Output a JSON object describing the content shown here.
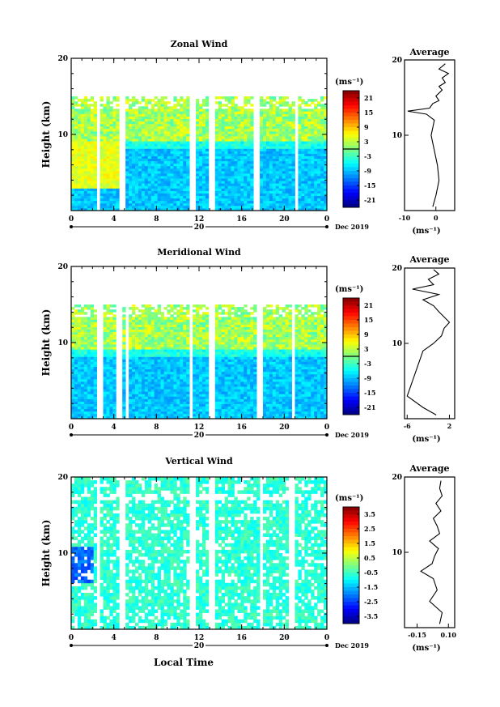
{
  "chart_data": [
    {
      "type": "heatmap",
      "title": "Zonal Wind",
      "ylabel": "Height (km)",
      "xlim": [
        0,
        24
      ],
      "ylim": [
        0,
        20
      ],
      "x_ticks": [
        "0",
        "4",
        "8",
        "12",
        "16",
        "20",
        "0"
      ],
      "y_ticks": [
        "20",
        "10"
      ],
      "date_marker": "20",
      "date_label": "Dec 2019",
      "colorbar": {
        "unit": "(ms⁻¹)",
        "ticks": [
          "21",
          "15",
          "9",
          "3",
          "-3",
          "-9",
          "-15",
          "-21"
        ],
        "range": [
          -24,
          24
        ]
      },
      "data_top_km": 15,
      "gaps_hours": [
        [
          2.3,
          2.7
        ],
        [
          4.6,
          5.1
        ],
        [
          5.6,
          5.7
        ],
        [
          11.2,
          11.6
        ],
        [
          13.0,
          13.5
        ],
        [
          17.2,
          17.6
        ],
        [
          21.0,
          21.3
        ]
      ],
      "profile": {
        "title": "Average",
        "xlim": [
          -10,
          6
        ],
        "ylim": [
          0,
          20
        ],
        "x_ticks": [
          "-10",
          "0"
        ],
        "y_ticks": [
          "20",
          "10"
        ],
        "xlabel": "(ms⁻¹)",
        "y": [
          0.5,
          2,
          4,
          6,
          8,
          10,
          11,
          12,
          12.8,
          13.2,
          13.6,
          14.2,
          14.6,
          15.2,
          16,
          16.5,
          17,
          17.6,
          18.2,
          18.8,
          19.5
        ],
        "x": [
          -1,
          0,
          1,
          0.5,
          -0.5,
          -1.5,
          -1,
          -0.5,
          -3,
          -9,
          -2,
          -1,
          1,
          0,
          2,
          1,
          3,
          2,
          4,
          1,
          3
        ]
      }
    },
    {
      "type": "heatmap",
      "title": "Meridional Wind",
      "ylabel": "Height (km)",
      "xlim": [
        0,
        24
      ],
      "ylim": [
        0,
        20
      ],
      "x_ticks": [
        "0",
        "4",
        "8",
        "12",
        "16",
        "20",
        "0"
      ],
      "y_ticks": [
        "20",
        "10"
      ],
      "date_marker": "20",
      "date_label": "Dec 2019",
      "colorbar": {
        "unit": "(ms⁻¹)",
        "ticks": [
          "21",
          "15",
          "9",
          "3",
          "-3",
          "-9",
          "-15",
          "-21"
        ],
        "range": [
          -24,
          24
        ]
      },
      "data_top_km": 15,
      "gaps_hours": [
        [
          2.5,
          2.9
        ],
        [
          4.1,
          4.7
        ],
        [
          5.0,
          5.3
        ],
        [
          11.0,
          11.5
        ],
        [
          13.0,
          13.5
        ],
        [
          17.5,
          17.9
        ],
        [
          20.6,
          21.0
        ]
      ],
      "profile": {
        "title": "Average",
        "xlim": [
          -6.5,
          3
        ],
        "ylim": [
          0,
          20
        ],
        "x_ticks": [
          "-6",
          "2"
        ],
        "y_ticks": [
          "20",
          "10"
        ],
        "xlabel": "(ms⁻¹)",
        "y": [
          0.5,
          1.5,
          3,
          5,
          7,
          9,
          10,
          11,
          12,
          12.8,
          13.5,
          14.2,
          15,
          15.8,
          16.5,
          17.2,
          17.8,
          18.5,
          19.2,
          19.8
        ],
        "x": [
          -0.5,
          -3,
          -6,
          -5,
          -4,
          -3,
          -1,
          0.5,
          1,
          2,
          1,
          0,
          -1,
          -3,
          0,
          -5,
          -1,
          -2,
          0,
          -1
        ]
      }
    },
    {
      "type": "heatmap",
      "title": "Vertical Wind",
      "ylabel": "Height (km)",
      "xlabel": "Local Time",
      "xlim": [
        0,
        24
      ],
      "ylim": [
        0,
        20
      ],
      "x_ticks": [
        "0",
        "4",
        "8",
        "12",
        "16",
        "20",
        "0"
      ],
      "y_ticks": [
        "20",
        "10"
      ],
      "date_marker": "20",
      "date_label": "Dec 2019",
      "colorbar": {
        "unit": "(ms⁻¹)",
        "ticks": [
          "3.5",
          "2.5",
          "1.5",
          "0.5",
          "-0.5",
          "-1.5",
          "-2.5",
          "-3.5"
        ],
        "range": [
          -4,
          4
        ]
      },
      "data_top_km": 20,
      "gaps_hours": [
        [
          2.4,
          2.8
        ],
        [
          4.6,
          5.1
        ],
        [
          11.2,
          11.6
        ],
        [
          13.0,
          13.5
        ],
        [
          17.6,
          17.9
        ],
        [
          20.5,
          20.9
        ]
      ],
      "profile": {
        "title": "Average",
        "xlim": [
          -0.25,
          0.15
        ],
        "ylim": [
          0,
          20
        ],
        "x_ticks": [
          "-0.15",
          "0.10"
        ],
        "y_ticks": [
          "20",
          "10"
        ],
        "xlabel": "(ms⁻¹)",
        "y": [
          0.5,
          2,
          3.5,
          5,
          6.5,
          7.5,
          8.5,
          9.5,
          10.5,
          11.5,
          12.5,
          13.5,
          14.5,
          15.5,
          16.5,
          17.5,
          18.5,
          19.5
        ],
        "x": [
          0.03,
          0.05,
          -0.05,
          0.01,
          -0.02,
          -0.12,
          -0.03,
          -0.01,
          0.02,
          -0.05,
          0.03,
          0.01,
          -0.02,
          0.04,
          0.0,
          0.05,
          0.03,
          0.04
        ]
      }
    }
  ]
}
